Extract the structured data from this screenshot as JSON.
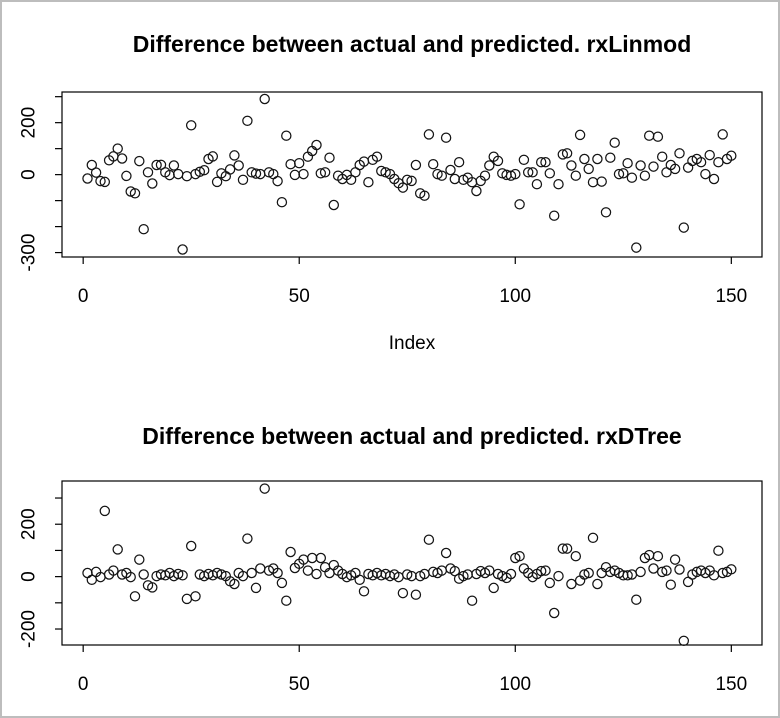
{
  "page": {
    "background": "#ffffff",
    "border_color": "#bdbdbd",
    "point_color": "#141414"
  },
  "chart_data": [
    {
      "type": "scatter",
      "title": "Difference between actual and predicted. rxLinmod",
      "xlabel": "Index",
      "ylabel": "",
      "marker": "open-circle",
      "x_is_index_1_to_n": true,
      "xlim": [
        -4.9,
        157.1
      ],
      "ylim": [
        -317,
        318
      ],
      "x_ticks": [
        0,
        50,
        100,
        150
      ],
      "y_ticks": [
        300,
        200,
        100,
        0,
        -100,
        -200,
        -300
      ],
      "y_tick_labels_shown": [
        200,
        0,
        -300
      ],
      "grid": false,
      "values": [
        -15,
        37,
        8,
        -25,
        -28,
        55,
        70,
        100,
        62,
        -5,
        -65,
        -72,
        52,
        -210,
        9,
        -34,
        37,
        38,
        9,
        -2,
        35,
        2,
        -288,
        -6,
        190,
        2,
        11,
        17,
        60,
        70,
        -28,
        5,
        -6,
        20,
        74,
        35,
        -20,
        207,
        9,
        4,
        2,
        291,
        9,
        2,
        -25,
        -106,
        150,
        40,
        -1,
        44,
        2,
        69,
        91,
        114,
        5,
        9,
        65,
        -117,
        -4,
        -17,
        -1,
        -20,
        9,
        37,
        50,
        -29,
        57,
        69,
        14,
        9,
        2,
        -17,
        -33,
        -50,
        -20,
        -24,
        37,
        -72,
        -81,
        155,
        40,
        2,
        -4,
        142,
        18,
        -17,
        48,
        -20,
        -12,
        -29,
        -63,
        -24,
        -4,
        35,
        69,
        53,
        5,
        -1,
        -4,
        2,
        -114,
        57,
        9,
        9,
        -37,
        48,
        48,
        5,
        -158,
        -37,
        78,
        82,
        35,
        -4,
        153,
        60,
        22,
        -29,
        60,
        -27,
        -145,
        65,
        123,
        2,
        5,
        44,
        -12,
        -281,
        35,
        -4,
        150,
        31,
        146,
        69,
        9,
        37,
        22,
        82,
        -204,
        27,
        53,
        60,
        48,
        2,
        75,
        -17,
        48,
        155,
        60,
        73
      ]
    },
    {
      "type": "scatter",
      "title": "Difference between actual and predicted. rxDTree",
      "xlabel": "",
      "ylabel": "",
      "marker": "open-circle",
      "x_is_index_1_to_n": true,
      "xlim": [
        -4.9,
        157.1
      ],
      "ylim": [
        -261,
        365
      ],
      "x_ticks": [
        0,
        50,
        100,
        150
      ],
      "y_ticks": [
        300,
        200,
        100,
        0,
        -100,
        -200
      ],
      "y_tick_labels_shown": [
        200,
        0,
        -200
      ],
      "grid": false,
      "values": [
        14,
        -12,
        18,
        -2,
        251,
        8,
        23,
        104,
        8,
        14,
        -2,
        -75,
        65,
        8,
        -33,
        -41,
        2,
        8,
        5,
        14,
        2,
        10,
        5,
        -85,
        117,
        -75,
        8,
        2,
        10,
        5,
        14,
        8,
        2,
        -18,
        -28,
        14,
        2,
        145,
        14,
        -43,
        31,
        336,
        23,
        31,
        14,
        -24,
        -92,
        94,
        33,
        49,
        65,
        23,
        71,
        10,
        71,
        36,
        14,
        44,
        23,
        10,
        -2,
        5,
        14,
        -12,
        -56,
        10,
        5,
        14,
        5,
        10,
        2,
        8,
        -2,
        -63,
        8,
        2,
        -69,
        2,
        10,
        141,
        18,
        14,
        23,
        90,
        31,
        21,
        -8,
        2,
        8,
        -92,
        10,
        21,
        14,
        23,
        -43,
        10,
        2,
        -5,
        10,
        71,
        78,
        31,
        14,
        -2,
        10,
        21,
        23,
        -24,
        -139,
        2,
        107,
        107,
        -28,
        78,
        -15,
        8,
        14,
        148,
        -28,
        14,
        36,
        18,
        23,
        14,
        5,
        5,
        8,
        -88,
        18,
        71,
        82,
        31,
        78,
        18,
        23,
        -31,
        65,
        27,
        -245,
        -20,
        8,
        18,
        23,
        14,
        23,
        5,
        99,
        14,
        18,
        28
      ]
    }
  ]
}
